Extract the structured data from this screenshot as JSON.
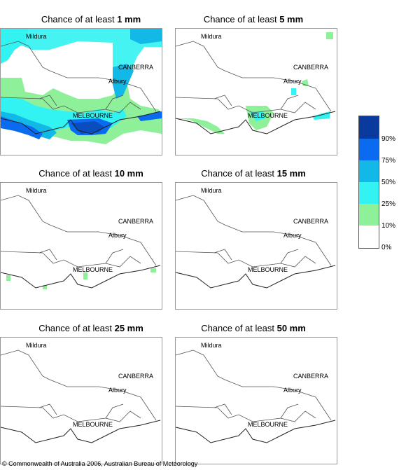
{
  "panels": [
    {
      "title_prefix": "Chance of at least ",
      "threshold": "1 mm"
    },
    {
      "title_prefix": "Chance of at least ",
      "threshold": "5 mm"
    },
    {
      "title_prefix": "Chance of at least ",
      "threshold": "10 mm"
    },
    {
      "title_prefix": "Chance of at least ",
      "threshold": "15 mm"
    },
    {
      "title_prefix": "Chance of at least ",
      "threshold": "25 mm"
    },
    {
      "title_prefix": "Chance of at least ",
      "threshold": "50 mm"
    }
  ],
  "cities": {
    "mildura": "Mildura",
    "canberra": "CANBERRA",
    "albury": "Albury",
    "melbourne": "MELBOURNE"
  },
  "legend": {
    "labels": [
      "90%",
      "75%",
      "50%",
      "25%",
      "10%",
      "0%"
    ],
    "colors": [
      "#0a3a9e",
      "#0a6af0",
      "#12b8e6",
      "#32f2f2",
      "#8ff09a",
      "#ffffff"
    ]
  },
  "copyright": "© Commonwealth of Australia 2006, Australian Bureau of Meteorology"
}
